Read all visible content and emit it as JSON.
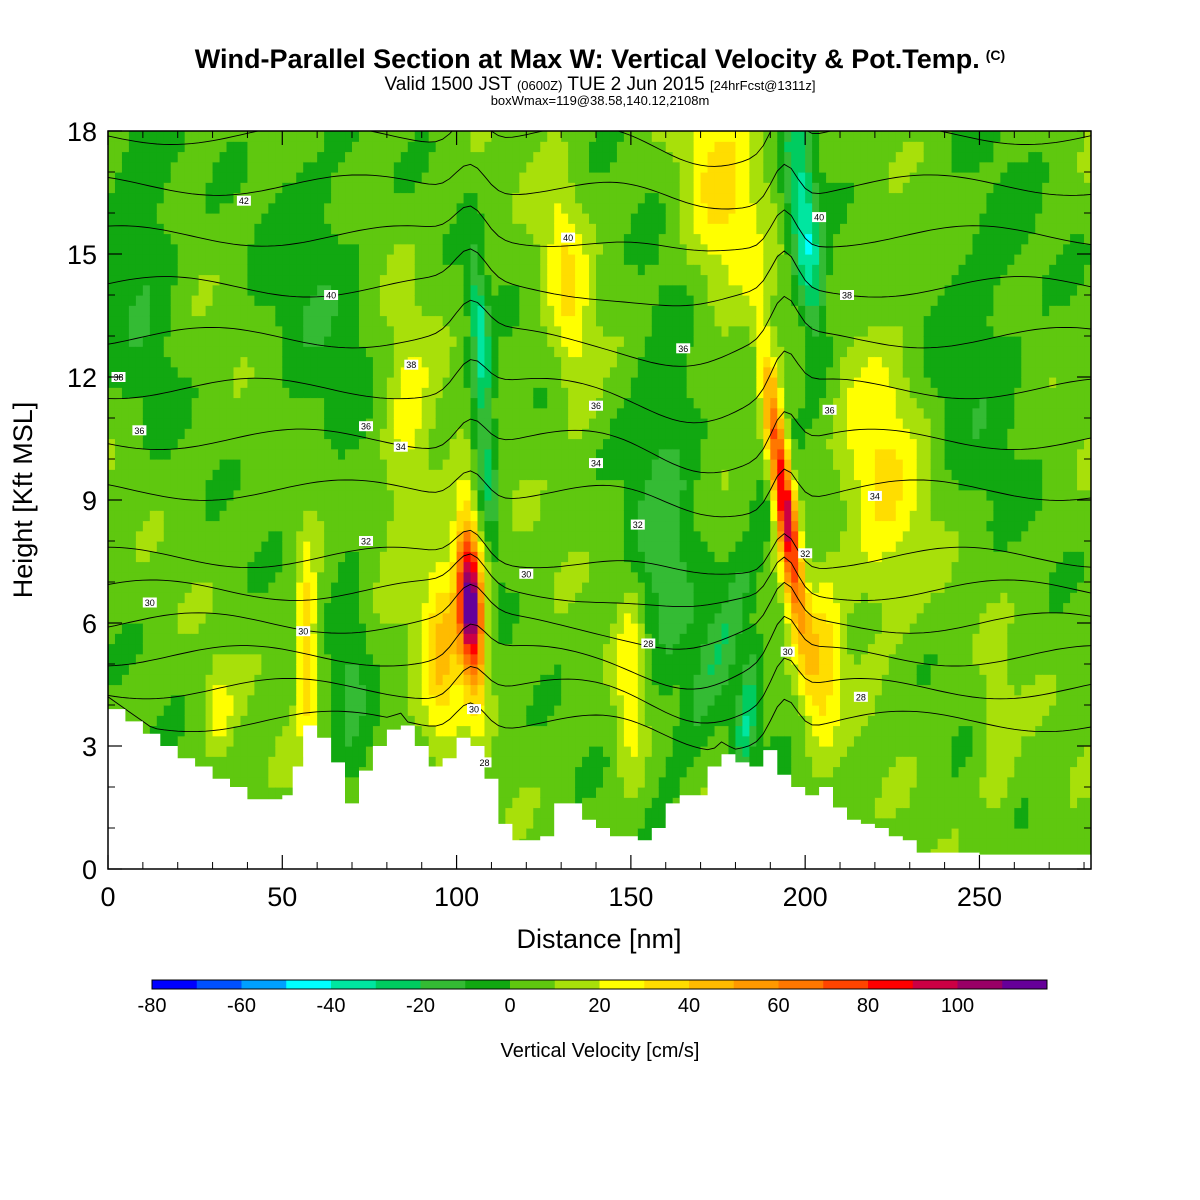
{
  "title": {
    "main": "Wind-Parallel Section at Max W: Vertical Velocity & Pot.Temp.",
    "copyright": "(C)",
    "valid_prefix": "Valid 1500 JST",
    "valid_utc": "(0600Z)",
    "valid_date": "TUE 2 Jun 2015",
    "forecast": "[24hrFcst@1311z]",
    "box_info": "boxWmax=119@38.58,140.12,2108m"
  },
  "colorbar": {
    "label": "Vertical Velocity [cm/s]",
    "tick_labels": [
      "-80",
      "-60",
      "-40",
      "-20",
      "0",
      "20",
      "40",
      "60",
      "80",
      "100"
    ],
    "levels": [
      -80,
      -70,
      -60,
      -50,
      -40,
      -30,
      -20,
      -10,
      0,
      10,
      20,
      30,
      40,
      50,
      60,
      70,
      80,
      90,
      100,
      110
    ],
    "colors": [
      "#0000ff",
      "#0050ff",
      "#00a0ff",
      "#00ffff",
      "#00e6a0",
      "#00cc60",
      "#34bb34",
      "#11a811",
      "#5fc80f",
      "#a8e00a",
      "#ffff00",
      "#ffdd00",
      "#ffbb00",
      "#ff9900",
      "#ff7700",
      "#ff4400",
      "#ff0000",
      "#cc0044",
      "#990066",
      "#660099"
    ]
  },
  "chart_data": {
    "type": "heatmap",
    "title": "Wind-Parallel Section at Max W: Vertical Velocity & Pot.Temp.",
    "xlabel": "Distance [nm]",
    "ylabel": "Height [Kft MSL]",
    "xlim": [
      0,
      282
    ],
    "ylim": [
      0,
      18
    ],
    "x_ticks": [
      0,
      50,
      100,
      150,
      200,
      250
    ],
    "y_ticks": [
      0,
      3,
      6,
      9,
      12,
      15,
      18
    ],
    "x_tick_labels": [
      "0",
      "50",
      "100",
      "150",
      "200",
      "250"
    ],
    "y_tick_labels": [
      "0",
      "3",
      "6",
      "9",
      "12",
      "15",
      "18"
    ],
    "background_w": 5,
    "w_features": [
      {
        "x": 104,
        "z": 6.5,
        "peak": 115,
        "wx": 3.5,
        "wz": 2.0,
        "tilt": -0.6
      },
      {
        "x": 194,
        "z": 9.0,
        "peak": 95,
        "wx": 3.0,
        "wz": 3.2,
        "tilt": -1.5
      },
      {
        "x": 200,
        "z": 15.5,
        "peak": -45,
        "wx": 4.5,
        "wz": 3.0,
        "tilt": -1.2
      },
      {
        "x": 107,
        "z": 13.0,
        "peak": -40,
        "wx": 2.5,
        "wz": 2.0,
        "tilt": -1.0
      },
      {
        "x": 108,
        "z": 10.0,
        "peak": -30,
        "wx": 3.0,
        "wz": 2.0,
        "tilt": -1.3
      },
      {
        "x": 183,
        "z": 3.5,
        "peak": -35,
        "wx": 3.0,
        "wz": 1.5,
        "tilt": 1.5
      },
      {
        "x": 178,
        "z": 6.0,
        "peak": -25,
        "wx": 5.0,
        "wz": 3.0,
        "tilt": 4.0
      },
      {
        "x": 132,
        "z": 14.0,
        "peak": 25,
        "wx": 6.0,
        "wz": 3.0,
        "tilt": -1.0
      },
      {
        "x": 86,
        "z": 10.5,
        "peak": 20,
        "wx": 7.0,
        "wz": 3.0,
        "tilt": 0
      },
      {
        "x": 96,
        "z": 5.5,
        "peak": 35,
        "wx": 6.0,
        "wz": 2.5,
        "tilt": 0
      },
      {
        "x": 57,
        "z": 5.5,
        "peak": 35,
        "wx": 3.0,
        "wz": 2.5,
        "tilt": 0
      },
      {
        "x": 150,
        "z": 4.5,
        "peak": 25,
        "wx": 4.0,
        "wz": 2.5,
        "tilt": 0
      },
      {
        "x": 176,
        "z": 16.5,
        "peak": 25,
        "wx": 12.0,
        "wz": 3.0,
        "tilt": 0
      },
      {
        "x": 222,
        "z": 9.5,
        "peak": 25,
        "wx": 12.0,
        "wz": 3.5,
        "tilt": 0
      },
      {
        "x": 205,
        "z": 5.0,
        "peak": 30,
        "wx": 5.0,
        "wz": 2.0,
        "tilt": 0
      },
      {
        "x": 255,
        "z": 3.0,
        "peak": 15,
        "wx": 5.0,
        "wz": 2.0,
        "tilt": 0
      },
      {
        "x": 32,
        "z": 3.8,
        "peak": 18,
        "wx": 4.0,
        "wz": 1.2,
        "tilt": 0
      },
      {
        "x": 160,
        "z": 9.0,
        "peak": -20,
        "wx": 10.0,
        "wz": 5.0,
        "tilt": 0
      },
      {
        "x": 10,
        "z": 15.5,
        "peak": -15,
        "wx": 10.0,
        "wz": 4.0,
        "tilt": 0
      },
      {
        "x": 70,
        "z": 5.0,
        "peak": -15,
        "wx": 5.0,
        "wz": 3.0,
        "tilt": 0
      },
      {
        "x": 250,
        "z": 13.0,
        "peak": -12,
        "wx": 15.0,
        "wz": 4.0,
        "tilt": 0
      },
      {
        "x": 60,
        "z": 14.5,
        "peak": -12,
        "wx": 15.0,
        "wz": 4.0,
        "tilt": 0
      }
    ],
    "terrain_x": [
      0,
      5,
      10,
      15,
      20,
      25,
      30,
      35,
      40,
      45,
      50,
      53,
      56,
      60,
      64,
      68,
      72,
      76,
      80,
      84,
      88,
      92,
      96,
      100,
      104,
      108,
      112,
      116,
      120,
      124,
      128,
      132,
      136,
      140,
      144,
      148,
      152,
      156,
      160,
      164,
      168,
      172,
      176,
      180,
      184,
      188,
      192,
      196,
      200,
      204,
      208,
      212,
      216,
      220,
      224,
      228,
      232,
      240,
      250,
      260,
      270,
      282
    ],
    "terrain_z": [
      3.9,
      3.6,
      3.3,
      3.0,
      2.7,
      2.5,
      2.2,
      2.0,
      1.7,
      1.7,
      1.8,
      2.5,
      3.5,
      3.2,
      2.6,
      1.6,
      2.4,
      3.0,
      3.4,
      3.5,
      3.0,
      2.5,
      2.7,
      3.2,
      3.0,
      2.2,
      1.1,
      0.7,
      0.7,
      0.8,
      1.6,
      1.6,
      1.2,
      1.0,
      0.8,
      0.8,
      0.7,
      1.0,
      1.6,
      1.8,
      1.8,
      2.5,
      2.8,
      2.6,
      2.5,
      2.9,
      2.3,
      2.0,
      1.8,
      2.0,
      1.5,
      1.2,
      1.1,
      1.0,
      0.8,
      0.7,
      0.4,
      0.4,
      0.35,
      0.35,
      0.35,
      0.35
    ],
    "theta_levels": [
      28,
      29,
      30,
      31,
      32,
      33,
      34,
      35,
      36,
      37,
      38,
      39,
      40,
      41,
      42
    ],
    "theta_labels": [
      {
        "text": "42",
        "x": 39,
        "z": 16.3
      },
      {
        "text": "40",
        "x": 64,
        "z": 14.0
      },
      {
        "text": "40",
        "x": 132,
        "z": 15.4
      },
      {
        "text": "40",
        "x": 204,
        "z": 15.9
      },
      {
        "text": "38",
        "x": 212,
        "z": 14.0
      },
      {
        "text": "38",
        "x": 3,
        "z": 12.0
      },
      {
        "text": "38",
        "x": 87,
        "z": 12.3
      },
      {
        "text": "36",
        "x": 165,
        "z": 12.7
      },
      {
        "text": "36",
        "x": 140,
        "z": 11.3
      },
      {
        "text": "36",
        "x": 9,
        "z": 10.7
      },
      {
        "text": "36",
        "x": 74,
        "z": 10.8
      },
      {
        "text": "36",
        "x": 207,
        "z": 11.2
      },
      {
        "text": "34",
        "x": 84,
        "z": 10.3
      },
      {
        "text": "34",
        "x": 140,
        "z": 9.9
      },
      {
        "text": "34",
        "x": 220,
        "z": 9.1
      },
      {
        "text": "32",
        "x": 74,
        "z": 8.0
      },
      {
        "text": "32",
        "x": 152,
        "z": 8.4
      },
      {
        "text": "32",
        "x": 200,
        "z": 7.7
      },
      {
        "text": "30",
        "x": 12,
        "z": 6.5
      },
      {
        "text": "30",
        "x": 120,
        "z": 7.2
      },
      {
        "text": "30",
        "x": 56,
        "z": 5.8
      },
      {
        "text": "30",
        "x": 195,
        "z": 5.3
      },
      {
        "text": "30",
        "x": 105,
        "z": 3.9
      },
      {
        "text": "28",
        "x": 155,
        "z": 5.5
      },
      {
        "text": "28",
        "x": 216,
        "z": 4.2
      },
      {
        "text": "28",
        "x": 108,
        "z": 2.6
      }
    ]
  }
}
